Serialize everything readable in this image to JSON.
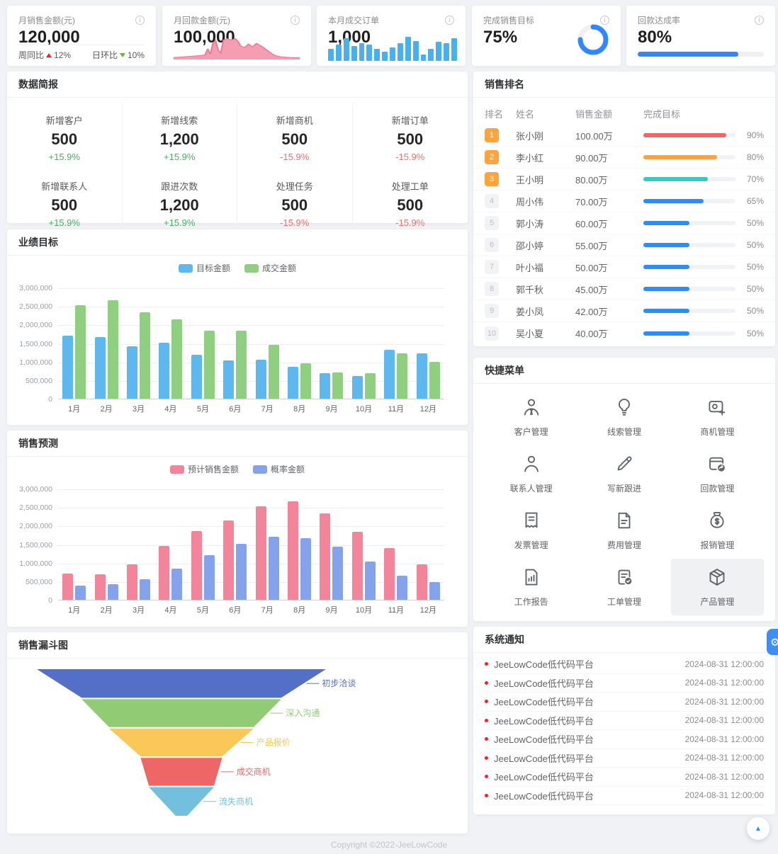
{
  "footer_text": "Copyright ©2022-JeeLowCode",
  "colors": {
    "accent_blue": "#2f88ff",
    "page_bg": "#f0f2f5",
    "up_green": "#44b15e",
    "down_red": "#f56c6c",
    "notification_dot": "#f5222d",
    "badge_orange": "#ffa43d"
  },
  "kpi_cards": [
    {
      "title": "月销售金额(元)",
      "value": "120,000",
      "footer": {
        "left_label": "周同比",
        "left_value": "12%",
        "left_trend": "up",
        "right_label": "日环比",
        "right_value": "10%",
        "right_trend": "down"
      }
    },
    {
      "title": "月回款金额(元)",
      "value": "100,000"
    },
    {
      "title": "本月成交订单",
      "value": "1,000"
    },
    {
      "title": "完成销售目标",
      "value": "75%",
      "progress_pct": 75
    },
    {
      "title": "回款达成率",
      "value": "80%",
      "progress_pct": 80
    }
  ],
  "sections": {
    "data_brief": "数据简报",
    "performance": "业绩目标",
    "forecast": "销售预测",
    "funnel": "销售漏斗图",
    "ranking": "销售排名",
    "quick_menu": "快捷菜单",
    "notifications": "系统通知"
  },
  "data_brief_stats": [
    {
      "label": "新增客户",
      "value": "500",
      "delta": "+15.9%",
      "trend": "up"
    },
    {
      "label": "新增线索",
      "value": "1,200",
      "delta": "+15.9%",
      "trend": "up"
    },
    {
      "label": "新增商机",
      "value": "500",
      "delta": "-15.9%",
      "trend": "down"
    },
    {
      "label": "新增订单",
      "value": "500",
      "delta": "-15.9%",
      "trend": "down"
    },
    {
      "label": "新增联系人",
      "value": "500",
      "delta": "+15.9%",
      "trend": "up"
    },
    {
      "label": "跟进次数",
      "value": "1,200",
      "delta": "+15.9%",
      "trend": "up"
    },
    {
      "label": "处理任务",
      "value": "500",
      "delta": "-15.9%",
      "trend": "down"
    },
    {
      "label": "处理工单",
      "value": "500",
      "delta": "-15.9%",
      "trend": "down"
    }
  ],
  "ranking": {
    "columns": [
      "排名",
      "姓名",
      "销售金额",
      "完成目标"
    ],
    "rows": [
      {
        "rank": "1",
        "name": "张小刚",
        "amount": "100.00万",
        "percent": 90,
        "percent_label": "90%",
        "bar_color": "#ee6666",
        "badge": "orange"
      },
      {
        "rank": "2",
        "name": "李小红",
        "amount": "90.00万",
        "percent": 80,
        "percent_label": "80%",
        "bar_color": "#fba33c",
        "badge": "orange"
      },
      {
        "rank": "3",
        "name": "王小明",
        "amount": "80.00万",
        "percent": 70,
        "percent_label": "70%",
        "bar_color": "#35cbc0",
        "badge": "orange"
      },
      {
        "rank": "4",
        "name": "周小伟",
        "amount": "70.00万",
        "percent": 65,
        "percent_label": "65%",
        "bar_color": "#2e8df2",
        "badge": "gray"
      },
      {
        "rank": "5",
        "name": "郭小涛",
        "amount": "60.00万",
        "percent": 50,
        "percent_label": "50%",
        "bar_color": "#2e8df2",
        "badge": "gray"
      },
      {
        "rank": "6",
        "name": "邵小婷",
        "amount": "55.00万",
        "percent": 50,
        "percent_label": "50%",
        "bar_color": "#2e8df2",
        "badge": "gray"
      },
      {
        "rank": "7",
        "name": "叶小福",
        "amount": "50.00万",
        "percent": 50,
        "percent_label": "50%",
        "bar_color": "#2e8df2",
        "badge": "gray"
      },
      {
        "rank": "8",
        "name": "郭千秋",
        "amount": "45.00万",
        "percent": 50,
        "percent_label": "50%",
        "bar_color": "#2e8df2",
        "badge": "gray"
      },
      {
        "rank": "9",
        "name": "姜小凤",
        "amount": "42.00万",
        "percent": 50,
        "percent_label": "50%",
        "bar_color": "#2e8df2",
        "badge": "gray"
      },
      {
        "rank": "10",
        "name": "吴小夏",
        "amount": "40.00万",
        "percent": 50,
        "percent_label": "50%",
        "bar_color": "#2e8df2",
        "badge": "gray"
      }
    ]
  },
  "quick_menu_items": [
    {
      "label": "客户管理",
      "icon": "customer-icon",
      "highlighted": false
    },
    {
      "label": "线索管理",
      "icon": "clue-icon",
      "highlighted": false
    },
    {
      "label": "商机管理",
      "icon": "opportunity-icon",
      "highlighted": false
    },
    {
      "label": "联系人管理",
      "icon": "contact-icon",
      "highlighted": false
    },
    {
      "label": "写新跟进",
      "icon": "edit-icon",
      "highlighted": false
    },
    {
      "label": "回款管理",
      "icon": "payment-return-icon",
      "highlighted": false
    },
    {
      "label": "发票管理",
      "icon": "invoice-icon",
      "highlighted": false
    },
    {
      "label": "费用管理",
      "icon": "expense-icon",
      "highlighted": false
    },
    {
      "label": "报销管理",
      "icon": "moneybag-icon",
      "highlighted": false
    },
    {
      "label": "工作报告",
      "icon": "report-icon",
      "highlighted": false
    },
    {
      "label": "工单管理",
      "icon": "workorder-icon",
      "highlighted": false
    },
    {
      "label": "产品管理",
      "icon": "product-icon",
      "highlighted": true
    }
  ],
  "notification_items": [
    {
      "text": "JeeLowCode低代码平台",
      "time": "2024-08-31 12:00:00"
    },
    {
      "text": "JeeLowCode低代码平台",
      "time": "2024-08-31 12:00:00"
    },
    {
      "text": "JeeLowCode低代码平台",
      "time": "2024-08-31 12:00:00"
    },
    {
      "text": "JeeLowCode低代码平台",
      "time": "2024-08-31 12:00:00"
    },
    {
      "text": "JeeLowCode低代码平台",
      "time": "2024-08-31 12:00:00"
    },
    {
      "text": "JeeLowCode低代码平台",
      "time": "2024-08-31 12:00:00"
    },
    {
      "text": "JeeLowCode低代码平台",
      "time": "2024-08-31 12:00:00"
    },
    {
      "text": "JeeLowCode低代码平台",
      "time": "2024-08-31 12:00:00"
    }
  ],
  "chart_data": [
    {
      "id": "payment-sparkline",
      "type": "area",
      "title": "月回款金额(元)",
      "color": "#f59db2",
      "stroke": "#ef7b95",
      "points": [
        [
          2,
          34
        ],
        [
          9,
          33
        ],
        [
          16,
          32
        ],
        [
          22,
          31
        ],
        [
          26,
          30
        ],
        [
          28,
          21
        ],
        [
          30,
          29
        ],
        [
          32,
          13
        ],
        [
          34,
          9
        ],
        [
          36,
          23
        ],
        [
          38,
          27
        ],
        [
          40,
          8
        ],
        [
          43,
          6
        ],
        [
          46,
          8
        ],
        [
          49,
          6
        ],
        [
          51,
          10
        ],
        [
          53,
          17
        ],
        [
          56,
          19
        ],
        [
          59,
          14
        ],
        [
          62,
          18
        ],
        [
          65,
          13
        ],
        [
          68,
          16
        ],
        [
          71,
          20
        ],
        [
          75,
          26
        ],
        [
          79,
          31
        ],
        [
          84,
          33
        ],
        [
          91,
          34
        ],
        [
          98,
          34
        ]
      ],
      "baseline": 37
    },
    {
      "id": "orders-sparkline",
      "type": "bar",
      "title": "本月成交订单",
      "color": "#45b2ef",
      "values": [
        45,
        60,
        85,
        55,
        65,
        60,
        45,
        35,
        50,
        65,
        90,
        75,
        25,
        45,
        70,
        65,
        85
      ]
    },
    {
      "id": "performance",
      "type": "bar",
      "title": "业绩目标",
      "categories": [
        "1月",
        "2月",
        "3月",
        "4月",
        "5月",
        "6月",
        "7月",
        "8月",
        "9月",
        "10月",
        "11月",
        "12月"
      ],
      "series": [
        {
          "name": "目标金额",
          "color": "#5cb8ee",
          "values": [
            1700000,
            1660000,
            1420000,
            1520000,
            1180000,
            1030000,
            1050000,
            870000,
            690000,
            620000,
            1320000,
            1220000
          ]
        },
        {
          "name": "成交金额",
          "color": "#8fd080",
          "values": [
            2520000,
            2650000,
            2330000,
            2150000,
            1840000,
            1830000,
            1450000,
            950000,
            700000,
            690000,
            1230000,
            1000000
          ]
        }
      ],
      "ylim": [
        0,
        3000000
      ],
      "ytick_labels": [
        "0",
        "500,000",
        "1,000,000",
        "1,500,000",
        "2,000,000",
        "2,500,000",
        "3,000,000"
      ],
      "legend_position": "top",
      "grid": true
    },
    {
      "id": "forecast",
      "type": "bar",
      "title": "销售预测",
      "categories": [
        "1月",
        "2月",
        "3月",
        "4月",
        "5月",
        "6月",
        "7月",
        "8月",
        "9月",
        "10月",
        "11月",
        "12月"
      ],
      "series": [
        {
          "name": "预计销售金额",
          "color": "#f4849a",
          "values": [
            700000,
            690000,
            950000,
            1450000,
            1850000,
            2150000,
            2520000,
            2650000,
            2330000,
            1840000,
            1400000,
            960000
          ]
        },
        {
          "name": "概率金额",
          "color": "#84a3ec",
          "values": [
            390000,
            420000,
            560000,
            850000,
            1200000,
            1520000,
            1700000,
            1670000,
            1430000,
            1030000,
            660000,
            480000
          ]
        }
      ],
      "ylim": [
        0,
        3000000
      ],
      "ytick_labels": [
        "0",
        "500,000",
        "1,000,000",
        "1,500,000",
        "2,000,000",
        "2,500,000",
        "3,000,000"
      ],
      "legend_position": "top",
      "grid": true
    },
    {
      "id": "funnel",
      "type": "funnel",
      "title": "销售漏斗图",
      "stages": [
        {
          "label": "初步洽谈",
          "color": "#5470C6"
        },
        {
          "label": "深入沟通",
          "color": "#91CC75"
        },
        {
          "label": "产品报价",
          "color": "#FAC858"
        },
        {
          "label": "成交商机",
          "color": "#EE6666"
        },
        {
          "label": "流失商机",
          "color": "#73C0DE"
        }
      ],
      "boundaries_pct": [
        100,
        69,
        50,
        28.2,
        22.5,
        4
      ]
    }
  ]
}
